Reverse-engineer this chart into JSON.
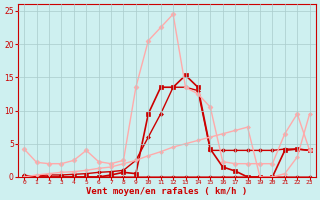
{
  "xlabel": "Vent moyen/en rafales ( km/h )",
  "xlabel_color": "#cc0000",
  "background_color": "#cef0f0",
  "grid_color": "#aacccc",
  "xlim": [
    -0.5,
    23.5
  ],
  "ylim": [
    0,
    26
  ],
  "yticks": [
    0,
    5,
    10,
    15,
    20,
    25
  ],
  "xticks": [
    0,
    1,
    2,
    3,
    4,
    5,
    6,
    7,
    8,
    9,
    10,
    11,
    12,
    13,
    14,
    15,
    16,
    17,
    18,
    19,
    20,
    21,
    22,
    23
  ],
  "x": [
    0,
    1,
    2,
    3,
    4,
    5,
    6,
    7,
    8,
    9,
    10,
    11,
    12,
    13,
    14,
    15,
    16,
    17,
    18,
    19,
    20,
    21,
    22,
    23
  ],
  "lines": [
    {
      "y": [
        0.3,
        0.0,
        0.0,
        0.0,
        0.0,
        0.0,
        0.0,
        0.0,
        0.0,
        0.0,
        0.0,
        0.0,
        0.0,
        0.0,
        0.0,
        0.0,
        0.0,
        0.0,
        0.0,
        0.0,
        0.0,
        0.0,
        0.0,
        0.0
      ],
      "color": "#cc0000",
      "marker": "D",
      "markersize": 2,
      "linewidth": 0.8
    },
    {
      "y": [
        0.0,
        0.2,
        0.3,
        0.3,
        0.4,
        0.5,
        0.7,
        0.8,
        1.0,
        2.5,
        6.0,
        9.5,
        13.5,
        13.5,
        13.0,
        4.0,
        4.0,
        4.0,
        4.0,
        4.0,
        4.0,
        4.2,
        4.2,
        4.0
      ],
      "color": "#cc0000",
      "marker": "D",
      "markersize": 2,
      "linewidth": 1.0
    },
    {
      "y": [
        0.0,
        0.0,
        0.0,
        0.0,
        0.0,
        0.0,
        0.0,
        0.3,
        0.7,
        0.5,
        9.5,
        13.5,
        13.5,
        15.3,
        13.5,
        4.2,
        1.5,
        0.9,
        0.0,
        0.0,
        0.0,
        4.0,
        4.2,
        4.0
      ],
      "color": "#cc0000",
      "marker": "s",
      "markersize": 2.5,
      "linewidth": 1.2
    },
    {
      "y": [
        4.2,
        2.2,
        2.0,
        2.0,
        2.5,
        4.0,
        2.3,
        2.0,
        2.5,
        13.5,
        20.5,
        22.5,
        24.5,
        13.5,
        12.5,
        10.5,
        2.3,
        2.0,
        2.0,
        2.0,
        2.0,
        6.5,
        9.5,
        4.0
      ],
      "color": "#ffaaaa",
      "marker": "D",
      "markersize": 2.5,
      "linewidth": 1.0
    },
    {
      "y": [
        0.0,
        0.3,
        0.5,
        0.7,
        0.8,
        1.0,
        1.3,
        1.5,
        2.0,
        2.5,
        3.2,
        3.8,
        4.5,
        5.0,
        5.5,
        6.0,
        6.5,
        7.0,
        7.5,
        0.0,
        0.0,
        0.5,
        3.0,
        9.5
      ],
      "color": "#ffaaaa",
      "marker": "D",
      "markersize": 2,
      "linewidth": 1.0
    }
  ]
}
